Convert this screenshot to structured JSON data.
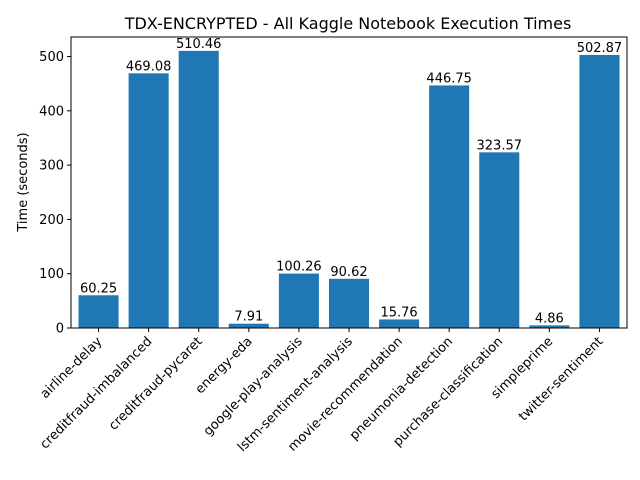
{
  "chart_data": {
    "type": "bar",
    "title": "TDX-ENCRYPTED - All Kaggle Notebook Execution Times",
    "xlabel": "",
    "ylabel": "Time (seconds)",
    "categories": [
      "airline-delay",
      "creditfraud-imbalanced",
      "creditfraud-pycaret",
      "energy-eda",
      "google-play-analysis",
      "lstm-sentiment-analysis",
      "movie-recommendation",
      "pneumonia-detection",
      "purchase-classification",
      "simpleprime",
      "twitter-sentiment"
    ],
    "values": [
      60.25,
      469.08,
      510.46,
      7.91,
      100.26,
      90.62,
      15.76,
      446.75,
      323.57,
      4.86,
      502.87
    ],
    "data_labels": [
      "60.25",
      "469.08",
      "510.46",
      "7.91",
      "100.26",
      "90.62",
      "15.76",
      "446.75",
      "323.57",
      "4.86",
      "502.87"
    ],
    "ylim": [
      0,
      536
    ],
    "yticks": [
      0,
      100,
      200,
      300,
      400,
      500
    ],
    "ytick_labels": [
      "0",
      "100",
      "200",
      "300",
      "400",
      "500"
    ],
    "bar_color": "#1f77b4",
    "grid": false,
    "legend": "none"
  }
}
